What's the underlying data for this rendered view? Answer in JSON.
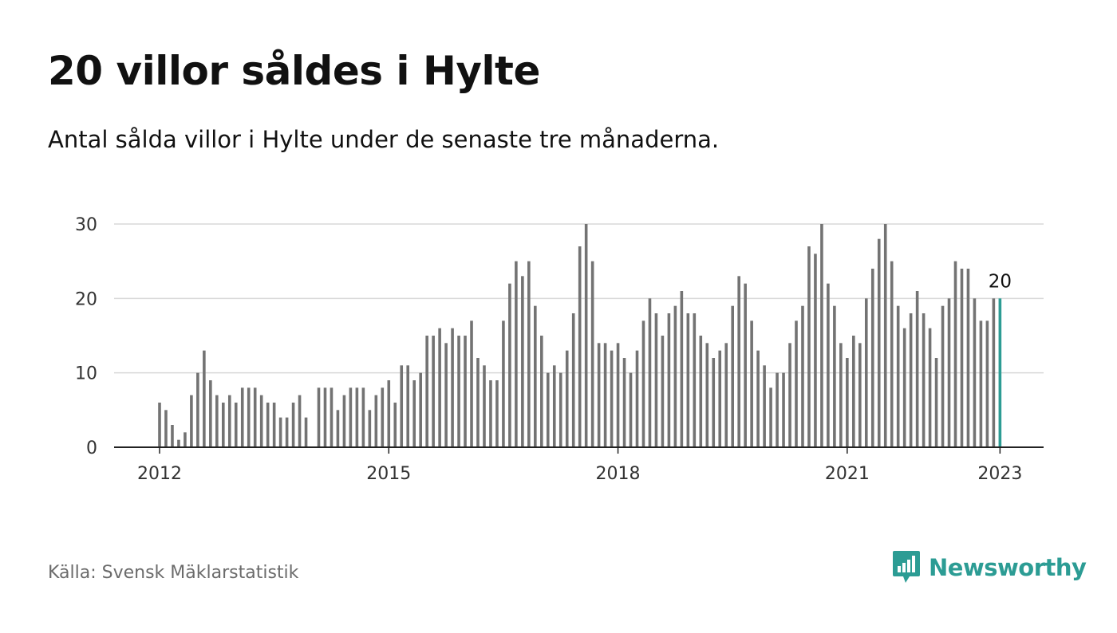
{
  "title": "20 villor såldes i Hylte",
  "subtitle": "Antal sålda villor i Hylte under de senaste tre månaderna.",
  "source": "Källa: Svensk Mäklarstatistik",
  "brand": {
    "name": "Newsworthy",
    "icon": "newsworthy-logo-icon",
    "color": "#2c9c94"
  },
  "chart_data": {
    "type": "bar",
    "ylim": [
      0,
      30
    ],
    "y_ticks": [
      0,
      10,
      20,
      30
    ],
    "x_ticks": [
      {
        "label": "2012",
        "month_index": 0
      },
      {
        "label": "2015",
        "month_index": 36
      },
      {
        "label": "2018",
        "month_index": 72
      },
      {
        "label": "2021",
        "month_index": 108
      },
      {
        "label": "2023",
        "month_index": 132
      }
    ],
    "grid": true,
    "bar_color": "#737373",
    "highlight_color": "#2c9c94",
    "highlight_label": "20",
    "start": "2012-01",
    "values": [
      6,
      5,
      3,
      1,
      2,
      7,
      10,
      13,
      9,
      7,
      6,
      7,
      6,
      8,
      8,
      8,
      7,
      6,
      6,
      4,
      4,
      6,
      7,
      4,
      0,
      8,
      8,
      8,
      5,
      7,
      8,
      8,
      8,
      5,
      7,
      8,
      9,
      6,
      11,
      11,
      9,
      10,
      15,
      15,
      16,
      14,
      16,
      15,
      15,
      17,
      12,
      11,
      9,
      9,
      17,
      22,
      25,
      23,
      25,
      19,
      15,
      10,
      11,
      10,
      13,
      18,
      27,
      30,
      25,
      14,
      14,
      13,
      14,
      12,
      10,
      13,
      17,
      20,
      18,
      15,
      18,
      19,
      21,
      18,
      18,
      15,
      14,
      12,
      13,
      14,
      19,
      23,
      22,
      17,
      13,
      11,
      8,
      10,
      10,
      14,
      17,
      19,
      27,
      26,
      30,
      22,
      19,
      14,
      12,
      15,
      14,
      20,
      24,
      28,
      30,
      25,
      19,
      16,
      18,
      21,
      18,
      16,
      12,
      19,
      20,
      25,
      24,
      24,
      20,
      17,
      17,
      20,
      20
    ]
  }
}
